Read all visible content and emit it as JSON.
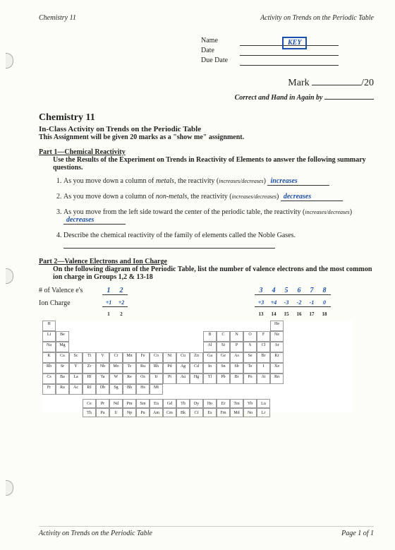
{
  "header": {
    "left": "Chemistry 11",
    "right": "Activity on Trends on the Periodic Table"
  },
  "name_block": {
    "name_lbl": "Name",
    "name_val": "KEY",
    "date_lbl": "Date",
    "due_lbl": "Due Date"
  },
  "mark": {
    "label": "Mark",
    "total": "/20"
  },
  "correct": {
    "pre": "Correct and Hand in Again by"
  },
  "title": "Chemistry 11",
  "subtitle": "In-Class Activity on Trends on the Periodic Table",
  "assign_note": "This Assignment will be given 20 marks as a \"show me\" assignment.",
  "part1": {
    "heading": "Part 1—Chemical Reactivity",
    "instr": "Use the Results of the Experiment on Trends in Reactivity of Elements to answer the following summary questions.",
    "q1_pre": "As you move down a column of ",
    "q1_em": "metals",
    "q1_post": ", the reactivity (",
    "q1_hint": "increases/decreases",
    "q1_close": ")",
    "q1_ans": "increases",
    "q2_pre": "As you move down a column of ",
    "q2_em": "non-metals",
    "q2_post": ", the reactivity (",
    "q2_hint": "increases/decreases",
    "q2_close": ")",
    "q2_ans": "decreases",
    "q3_pre": "As you move from the left side toward the center of the periodic table, the reactivity (",
    "q3_hint": "increases/decreases",
    "q3_close": ")",
    "q3_ans": "decreases",
    "q4": "Describe the chemical reactivity of the family of elements called the Noble Gases."
  },
  "part2": {
    "heading": "Part 2—Valence Electrons and Ion Charge",
    "instr": "On the following diagram of the Periodic Table, list the number of valence electrons and the most common ion charge in Groups 1,2 & 13-18",
    "ve_lbl": "# of Valence e's",
    "ic_lbl": "Ion Charge",
    "ve": {
      "g1": "1",
      "g2": "2",
      "g13": "3",
      "g14": "4",
      "g15": "5",
      "g16": "6",
      "g17": "7",
      "g18": "8"
    },
    "ic": {
      "g1": "+1",
      "g2": "+2",
      "g13": "+3",
      "g14": "+4",
      "g15": "-3",
      "g16": "-2",
      "g17": "-1",
      "g18": "0"
    },
    "grp_left": {
      "g1": "1",
      "g2": "2"
    },
    "grp_right": {
      "g13": "13",
      "g14": "14",
      "g15": "15",
      "g16": "16",
      "g17": "17",
      "g18": "18"
    }
  },
  "ptable": {
    "r1": {
      "g1": "H",
      "g18": "He"
    },
    "r2": {
      "g1": "Li",
      "g2": "Be",
      "g13": "B",
      "g14": "C",
      "g15": "N",
      "g16": "O",
      "g17": "F",
      "g18": "Ne"
    },
    "r3": {
      "g1": "Na",
      "g2": "Mg",
      "g13": "Al",
      "g14": "Si",
      "g15": "P",
      "g16": "S",
      "g17": "Cl",
      "g18": "Ar"
    },
    "r4": [
      "K",
      "Ca",
      "Sc",
      "Ti",
      "V",
      "Cr",
      "Mn",
      "Fe",
      "Co",
      "Ni",
      "Cu",
      "Zn",
      "Ga",
      "Ge",
      "As",
      "Se",
      "Br",
      "Kr"
    ],
    "r5": [
      "Rb",
      "Sr",
      "Y",
      "Zr",
      "Nb",
      "Mo",
      "Tc",
      "Ru",
      "Rh",
      "Pd",
      "Ag",
      "Cd",
      "In",
      "Sn",
      "Sb",
      "Te",
      "I",
      "Xe"
    ],
    "r6": [
      "Cs",
      "Ba",
      "La",
      "Hf",
      "Ta",
      "W",
      "Re",
      "Os",
      "Ir",
      "Pt",
      "Au",
      "Hg",
      "Tl",
      "Pb",
      "Bi",
      "Po",
      "At",
      "Rn"
    ],
    "r7": [
      "Fr",
      "Ra",
      "Ac",
      "Rf",
      "Db",
      "Sg",
      "Bh",
      "Hs",
      "Mt",
      "",
      "",
      "",
      "",
      "",
      "",
      "",
      "",
      ""
    ],
    "f1": [
      "Ce",
      "Pr",
      "Nd",
      "Pm",
      "Sm",
      "Eu",
      "Gd",
      "Tb",
      "Dy",
      "Ho",
      "Er",
      "Tm",
      "Yb",
      "Lu"
    ],
    "f2": [
      "Th",
      "Pa",
      "U",
      "Np",
      "Pu",
      "Am",
      "Cm",
      "Bk",
      "Cf",
      "Es",
      "Fm",
      "Md",
      "No",
      "Lr"
    ]
  },
  "footer": {
    "left": "Activity on Trends on the Periodic Table",
    "right": "Page 1 of 1"
  }
}
